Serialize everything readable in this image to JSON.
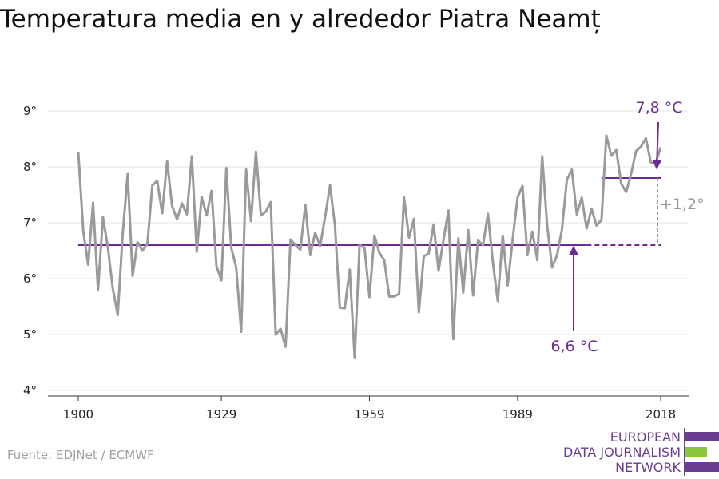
{
  "title": "Temperatura media en y alrededor Piatra Neamț",
  "source": "Fuente: EDJNet / ECMWF",
  "logo": {
    "lines": [
      "EUROPEAN",
      "DATA JOURNALISM",
      "NETWORK"
    ],
    "colors": {
      "purple": "#6a3d8f",
      "green": "#8cc63f"
    }
  },
  "chart_data": {
    "type": "line",
    "title": "Temperatura media en y alrededor Piatra Neamț",
    "xlabel": "",
    "ylabel": "",
    "xlim": [
      1900,
      2018
    ],
    "ylim": [
      4,
      9
    ],
    "x_ticks": [
      1900,
      1929,
      1959,
      1989,
      2018
    ],
    "y_ticks": [
      4,
      5,
      6,
      7,
      8,
      9
    ],
    "y_tick_labels": [
      "4°",
      "5°",
      "6°",
      "7°",
      "8°",
      "9°"
    ],
    "grid": true,
    "colors": {
      "line": "#9a9a9a",
      "reference": "#6a2c91",
      "delta": "#9a9a9a"
    },
    "series": [
      {
        "x": [
          1900,
          1901,
          1902,
          1903,
          1904,
          1905,
          1906,
          1907,
          1908,
          1909,
          1910,
          1911,
          1912,
          1913,
          1914,
          1915,
          1916,
          1917,
          1918,
          1919,
          1920,
          1921,
          1922,
          1923,
          1924,
          1925,
          1926,
          1927,
          1928,
          1929,
          1930,
          1931,
          1932,
          1933,
          1934,
          1935,
          1936,
          1937,
          1938,
          1939,
          1940,
          1941,
          1942,
          1943,
          1944,
          1945,
          1946,
          1947,
          1948,
          1949,
          1950,
          1951,
          1952,
          1953,
          1954,
          1955,
          1956,
          1957,
          1958,
          1959,
          1960,
          1961,
          1962,
          1963,
          1964,
          1965,
          1966,
          1967,
          1968,
          1969,
          1970,
          1971,
          1972,
          1973,
          1974,
          1975,
          1976,
          1977,
          1978,
          1979,
          1980,
          1981,
          1982,
          1983,
          1984,
          1985,
          1986,
          1987,
          1988,
          1989,
          1990,
          1991,
          1992,
          1993,
          1994,
          1995,
          1996,
          1997,
          1998,
          1999,
          2000,
          2001,
          2002,
          2003,
          2004,
          2005,
          2006,
          2007,
          2008,
          2009,
          2010,
          2011,
          2012,
          2013,
          2014,
          2015,
          2016,
          2017,
          2018
        ],
        "values": [
          8.27,
          6.85,
          6.25,
          7.36,
          5.8,
          7.1,
          6.55,
          5.82,
          5.35,
          6.8,
          7.87,
          6.05,
          6.65,
          6.5,
          6.62,
          7.67,
          7.75,
          7.17,
          8.1,
          7.3,
          7.06,
          7.35,
          7.15,
          8.19,
          6.48,
          7.46,
          7.13,
          7.57,
          6.22,
          5.97,
          7.98,
          6.55,
          6.2,
          5.05,
          7.95,
          7.03,
          8.27,
          7.13,
          7.2,
          7.37,
          5.0,
          5.1,
          4.78,
          6.7,
          6.6,
          6.52,
          7.32,
          6.42,
          6.82,
          6.58,
          7.1,
          7.67,
          6.95,
          5.48,
          5.47,
          6.16,
          4.58,
          6.6,
          6.55,
          5.67,
          6.77,
          6.46,
          6.33,
          5.68,
          5.68,
          5.73,
          7.46,
          6.73,
          7.07,
          5.4,
          6.4,
          6.45,
          6.97,
          6.14,
          6.7,
          7.22,
          4.92,
          6.72,
          5.75,
          6.87,
          5.7,
          6.68,
          6.6,
          7.16,
          6.3,
          5.6,
          6.77,
          5.88,
          6.7,
          7.45,
          7.66,
          6.42,
          6.84,
          6.33,
          8.19,
          6.95,
          6.2,
          6.42,
          6.88,
          7.77,
          7.95,
          7.15,
          7.45,
          6.9,
          7.25,
          6.95,
          7.05,
          8.56,
          8.2,
          8.3,
          7.7,
          7.55,
          7.87,
          8.28,
          8.36,
          8.51,
          8.08,
          8.07,
          8.35
        ]
      }
    ],
    "reference_lines": [
      {
        "from": 1900,
        "to": 2018,
        "value": 6.6,
        "solid_until": 2003
      },
      {
        "from": 2006,
        "to": 2018,
        "value": 7.8
      }
    ],
    "annotations": [
      {
        "text": "7,8 °C",
        "x": 2018,
        "y": 7.8,
        "color": "#6a2c91"
      },
      {
        "text": "6,6 °C",
        "x": 2004,
        "y": 6.6,
        "color": "#6a2c91"
      },
      {
        "text": "+1,2°",
        "x": 2018,
        "y": 7.2,
        "color": "#9a9a9a"
      }
    ]
  }
}
